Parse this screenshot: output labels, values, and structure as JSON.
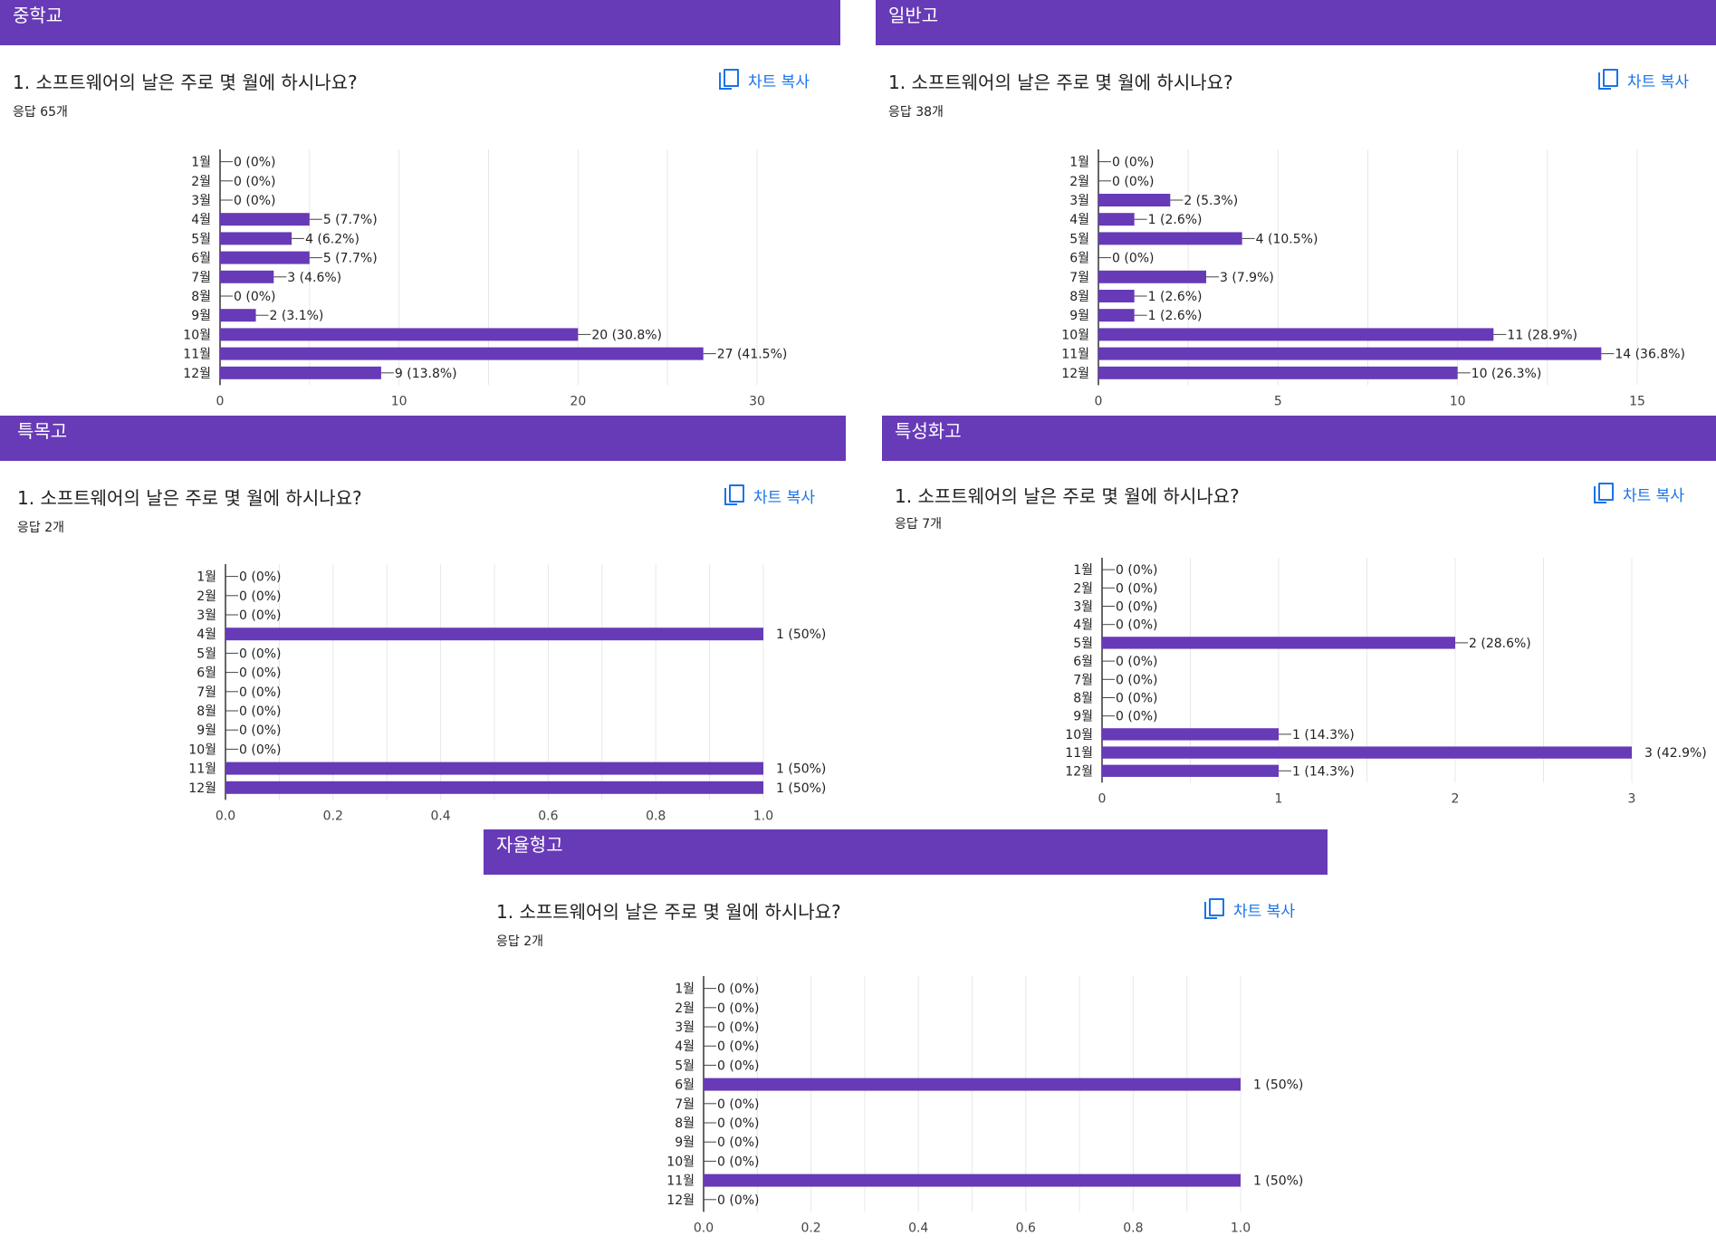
{
  "chart_data": [
    {
      "type": "bar",
      "title": "중학교",
      "question": "1. 소프트웨어의 날은 주로 몇 월에 하시나요?",
      "responses_label": "응답 65개",
      "copy_label": "차트 복사",
      "categories": [
        "1월",
        "2월",
        "3월",
        "4월",
        "5월",
        "6월",
        "7월",
        "8월",
        "9월",
        "10월",
        "11월",
        "12월"
      ],
      "values": [
        0,
        0,
        0,
        5,
        4,
        5,
        3,
        0,
        2,
        20,
        27,
        9
      ],
      "value_labels": [
        "0 (0%)",
        "0 (0%)",
        "0 (0%)",
        "5 (7.7%)",
        "4 (6.2%)",
        "5 (7.7%)",
        "3 (4.6%)",
        "0 (0%)",
        "2 (3.1%)",
        "20 (30.8%)",
        "27 (41.5%)",
        "9 (13.8%)"
      ],
      "xlim": [
        0,
        30
      ],
      "ticks": [
        0,
        10,
        20,
        30
      ],
      "tick_labels": [
        "0",
        "10",
        "20",
        "30"
      ],
      "color": "#673ab7"
    },
    {
      "type": "bar",
      "title": "일반고",
      "question": "1. 소프트웨어의 날은 주로 몇 월에 하시나요?",
      "responses_label": "응답 38개",
      "copy_label": "차트 복사",
      "categories": [
        "1월",
        "2월",
        "3월",
        "4월",
        "5월",
        "6월",
        "7월",
        "8월",
        "9월",
        "10월",
        "11월",
        "12월"
      ],
      "values": [
        0,
        0,
        2,
        1,
        4,
        0,
        3,
        1,
        1,
        11,
        14,
        10
      ],
      "value_labels": [
        "0 (0%)",
        "0 (0%)",
        "2 (5.3%)",
        "1 (2.6%)",
        "4 (10.5%)",
        "0 (0%)",
        "3 (7.9%)",
        "1 (2.6%)",
        "1 (2.6%)",
        "11 (28.9%)",
        "14 (36.8%)",
        "10 (26.3%)"
      ],
      "xlim": [
        0,
        15
      ],
      "ticks": [
        0,
        5,
        10,
        15
      ],
      "tick_labels": [
        "0",
        "5",
        "10",
        "15"
      ],
      "color": "#673ab7"
    },
    {
      "type": "bar",
      "title": "특목고",
      "question": "1. 소프트웨어의 날은 주로 몇 월에 하시나요?",
      "responses_label": "응답 2개",
      "copy_label": "차트 복사",
      "categories": [
        "1월",
        "2월",
        "3월",
        "4월",
        "5월",
        "6월",
        "7월",
        "8월",
        "9월",
        "10월",
        "11월",
        "12월"
      ],
      "values": [
        0,
        0,
        0,
        1,
        0,
        0,
        0,
        0,
        0,
        0,
        1,
        1
      ],
      "value_labels": [
        "0 (0%)",
        "0 (0%)",
        "0 (0%)",
        "1 (50%)",
        "0 (0%)",
        "0 (0%)",
        "0 (0%)",
        "0 (0%)",
        "0 (0%)",
        "0 (0%)",
        "1 (50%)",
        "1 (50%)"
      ],
      "xlim": [
        0,
        1
      ],
      "ticks": [
        0,
        0.2,
        0.4,
        0.6,
        0.8,
        1.0
      ],
      "tick_labels": [
        "0.0",
        "0.2",
        "0.4",
        "0.6",
        "0.8",
        "1.0"
      ],
      "color": "#673ab7"
    },
    {
      "type": "bar",
      "title": "특성화고",
      "question": "1. 소프트웨어의 날은 주로 몇 월에 하시나요?",
      "responses_label": "응답 7개",
      "copy_label": "차트 복사",
      "categories": [
        "1월",
        "2월",
        "3월",
        "4월",
        "5월",
        "6월",
        "7월",
        "8월",
        "9월",
        "10월",
        "11월",
        "12월"
      ],
      "values": [
        0,
        0,
        0,
        0,
        2,
        0,
        0,
        0,
        0,
        1,
        3,
        1
      ],
      "value_labels": [
        "0 (0%)",
        "0 (0%)",
        "0 (0%)",
        "0 (0%)",
        "2 (28.6%)",
        "0 (0%)",
        "0 (0%)",
        "0 (0%)",
        "0 (0%)",
        "1 (14.3%)",
        "3 (42.9%)",
        "1 (14.3%)"
      ],
      "xlim": [
        0,
        3
      ],
      "ticks": [
        0,
        1,
        2,
        3
      ],
      "tick_labels": [
        "0",
        "1",
        "2",
        "3"
      ],
      "color": "#673ab7"
    },
    {
      "type": "bar",
      "title": "자율형고",
      "question": "1. 소프트웨어의 날은 주로 몇 월에 하시나요?",
      "responses_label": "응답 2개",
      "copy_label": "차트 복사",
      "categories": [
        "1월",
        "2월",
        "3월",
        "4월",
        "5월",
        "6월",
        "7월",
        "8월",
        "9월",
        "10월",
        "11월",
        "12월"
      ],
      "values": [
        0,
        0,
        0,
        0,
        0,
        1,
        0,
        0,
        0,
        0,
        1,
        0
      ],
      "value_labels": [
        "0 (0%)",
        "0 (0%)",
        "0 (0%)",
        "0 (0%)",
        "0 (0%)",
        "1 (50%)",
        "0 (0%)",
        "0 (0%)",
        "0 (0%)",
        "0 (0%)",
        "1 (50%)",
        "0 (0%)"
      ],
      "xlim": [
        0,
        1
      ],
      "ticks": [
        0,
        0.2,
        0.4,
        0.6,
        0.8,
        1.0
      ],
      "tick_labels": [
        "0.0",
        "0.2",
        "0.4",
        "0.6",
        "0.8",
        "1.0"
      ],
      "color": "#673ab7"
    }
  ]
}
